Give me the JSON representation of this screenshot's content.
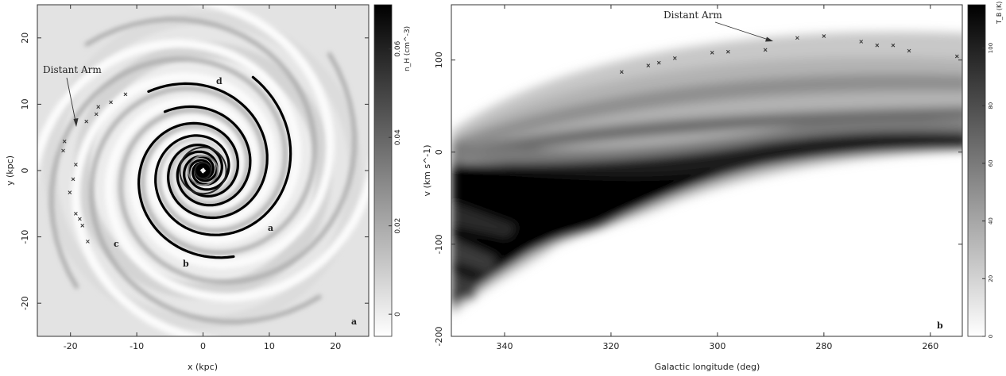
{
  "panels": [
    {
      "panel_letter": "a",
      "annotation": "Distant Arm",
      "arm_labels": [
        "a",
        "b",
        "c",
        "d"
      ],
      "colorbar": {
        "label": "n_H (cm^-3)",
        "ticks": [
          "0",
          "0.02",
          "0.04",
          "0.06"
        ]
      }
    },
    {
      "panel_letter": "b",
      "annotation": "Distant Arm",
      "colorbar": {
        "label": "T_B (K)",
        "ticks": [
          "0",
          "20",
          "40",
          "60",
          "80",
          "100"
        ]
      }
    }
  ],
  "chart_data": [
    {
      "type": "heatmap",
      "title": "",
      "xlabel": "x (kpc)",
      "ylabel": "y (kpc)",
      "xlim": [
        -25,
        25
      ],
      "ylim": [
        -25,
        25
      ],
      "xticks": [
        -20,
        -10,
        0,
        10,
        20
      ],
      "yticks": [
        -20,
        -10,
        0,
        10,
        20
      ],
      "colorbar_range": [
        -0.005,
        0.07
      ],
      "colormap": "white-to-black",
      "distant_arm_points": [
        [
          -11.7,
          11.5
        ],
        [
          -13.9,
          10.3
        ],
        [
          -15.8,
          9.6
        ],
        [
          -16.1,
          8.5
        ],
        [
          -17.6,
          7.4
        ],
        [
          -20.9,
          4.4
        ],
        [
          -21.1,
          3.0
        ],
        [
          -19.2,
          0.9
        ],
        [
          -19.6,
          -1.3
        ],
        [
          -20.1,
          -3.3
        ],
        [
          -19.2,
          -6.5
        ],
        [
          -18.6,
          -7.3
        ],
        [
          -18.2,
          -8.3
        ],
        [
          -17.4,
          -10.7
        ]
      ]
    },
    {
      "type": "heatmap",
      "title": "",
      "xlabel": "Galactic longitude (deg)",
      "ylabel": "v (km s^-1)",
      "xlim": [
        350,
        254
      ],
      "ylim": [
        -200,
        160
      ],
      "xticks": [
        340,
        320,
        300,
        280,
        260
      ],
      "yticks": [
        -200,
        -100,
        0,
        100
      ],
      "colorbar_range": [
        0,
        115
      ],
      "colormap": "white-to-black",
      "distant_arm_points": [
        [
          318,
          87
        ],
        [
          313,
          94
        ],
        [
          311,
          97
        ],
        [
          308,
          102
        ],
        [
          301,
          108
        ],
        [
          298,
          109
        ],
        [
          291,
          111
        ],
        [
          285,
          124
        ],
        [
          280,
          126
        ],
        [
          273,
          120
        ],
        [
          270,
          116
        ],
        [
          267,
          116
        ],
        [
          264,
          110
        ],
        [
          255,
          104
        ]
      ]
    }
  ]
}
